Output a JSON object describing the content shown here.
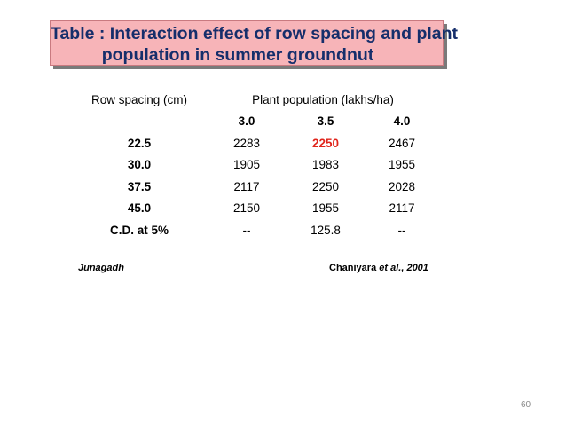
{
  "title": {
    "line1": "Table : Interaction effect of row spacing and plant",
    "line2": "population in summer groundnut"
  },
  "table": {
    "header_row_spacing": "Row spacing (cm)",
    "header_plant_population": "Plant population (lakhs/ha)",
    "sub_headers": [
      "3.0",
      "3.5",
      "4.0"
    ],
    "rows": [
      {
        "label": "22.5",
        "values": [
          "2283",
          "2250",
          "2467"
        ],
        "highlight_index": 1
      },
      {
        "label": "30.0",
        "values": [
          "1905",
          "1983",
          "1955"
        ]
      },
      {
        "label": "37.5",
        "values": [
          "2117",
          "2250",
          "2028"
        ]
      },
      {
        "label": "45.0",
        "values": [
          "2150",
          "1955",
          "2117"
        ]
      },
      {
        "label": "C.D. at 5%",
        "values": [
          "--",
          "125.8",
          "--"
        ]
      }
    ]
  },
  "footer": {
    "location": "Junagadh",
    "citation_author": "Chaniyara",
    "citation_etal": "et al., 2001"
  },
  "slide_number": "60",
  "colors": {
    "title_bg": "#f7b4b8",
    "title_text": "#152e6b",
    "highlight": "#e0241b"
  }
}
